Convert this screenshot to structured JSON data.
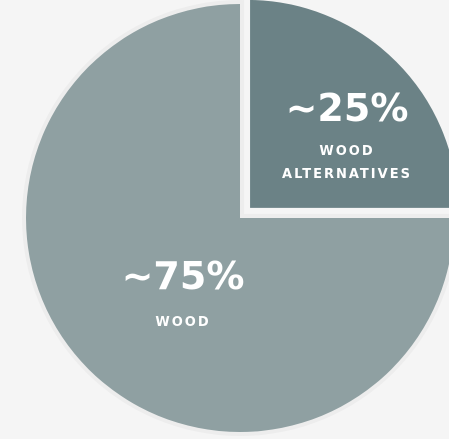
{
  "chart_data": {
    "type": "pie",
    "slices": [
      {
        "label_value": "~75%",
        "label_lines": [
          "WOOD"
        ],
        "value": 75,
        "color": "#8fa0a2"
      },
      {
        "label_value": "~25%",
        "label_lines": [
          "WOOD",
          "ALTERNATIVES"
        ],
        "value": 25,
        "color": "#6b8286"
      }
    ],
    "exploded_slice": 1,
    "background": "#f5f5f5",
    "outline_color": "#ededed"
  }
}
